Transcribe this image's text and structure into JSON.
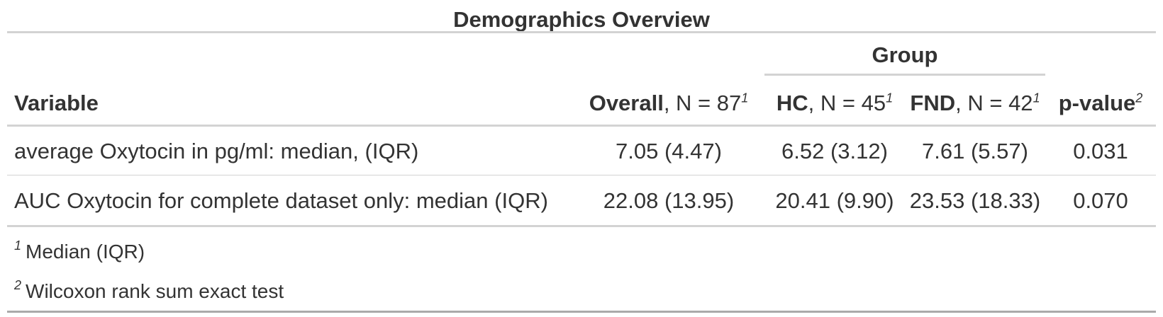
{
  "table": {
    "title": "Demographics Overview",
    "spanner_label": "Group",
    "columns": [
      {
        "key": "variable",
        "bold": "Variable",
        "rest": "",
        "sup": ""
      },
      {
        "key": "overall",
        "bold": "Overall",
        "rest": ", N = 87",
        "sup": "1"
      },
      {
        "key": "hc",
        "bold": "HC",
        "rest": ", N = 45",
        "sup": "1"
      },
      {
        "key": "fnd",
        "bold": "FND",
        "rest": ", N = 42",
        "sup": "1"
      },
      {
        "key": "pvalue",
        "bold": "p-value",
        "rest": "",
        "sup": "2"
      }
    ],
    "rows": [
      {
        "variable": "average Oxytocin in pg/ml: median, (IQR)",
        "overall": "7.05 (4.47)",
        "hc": "6.52 (3.12)",
        "fnd": "7.61 (5.57)",
        "pvalue": "0.031"
      },
      {
        "variable": "AUC Oxytocin for complete dataset only: median (IQR)",
        "overall": "22.08 (13.95)",
        "hc": "20.41 (9.90)",
        "fnd": "23.53 (18.33)",
        "pvalue": "0.070"
      }
    ],
    "footnotes": [
      {
        "mark": "1",
        "text": "Median (IQR)"
      },
      {
        "mark": "2",
        "text": "Wilcoxon rank sum exact test"
      }
    ]
  }
}
